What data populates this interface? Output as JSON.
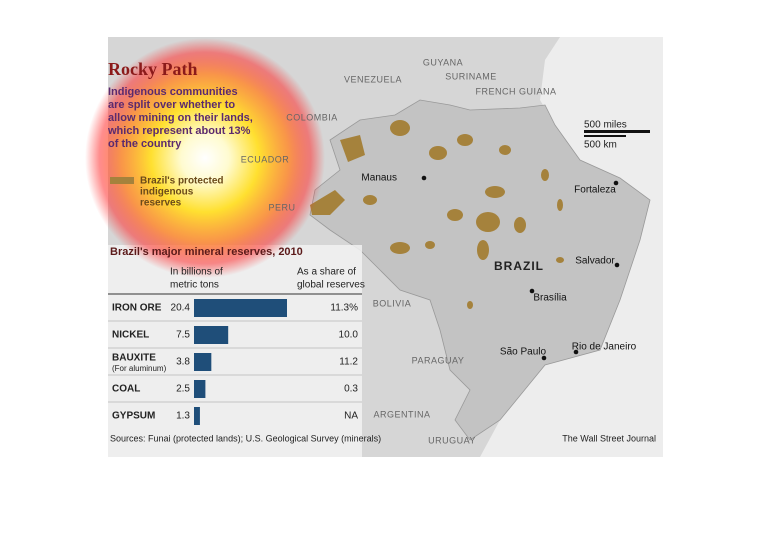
{
  "title": "Rocky Path",
  "subtitle_lines": [
    "Indigenous communities",
    "are split over whether to",
    "allow mining on their lands,",
    "which represent about 13%",
    "of the country"
  ],
  "legend_lines": [
    "Brazil's protected",
    "indigenous",
    "reserves"
  ],
  "countries": [
    "VENEZUELA",
    "GUYANA",
    "SURINAME",
    "FRENCH GUIANA",
    "COLOMBIA",
    "ECUADOR",
    "PERU",
    "BOLIVIA",
    "PARAGUAY",
    "ARGENTINA",
    "URUGUAY"
  ],
  "country_name": "BRAZIL",
  "cities": [
    "Manaus",
    "Fortaleza",
    "Salvador",
    "Brasília",
    "São Paulo",
    "Rio de Janeiro"
  ],
  "scale": [
    "500 miles",
    "500 km"
  ],
  "chart_data": {
    "type": "bar",
    "title": "Brazil's major mineral reserves, 2010",
    "value_header": [
      "In billions of",
      "metric tons"
    ],
    "share_header": [
      "As a share of",
      "global reserves"
    ],
    "categories": [
      "IRON ORE",
      "NICKEL",
      "BAUXITE",
      "COAL",
      "GYPSUM"
    ],
    "category_notes": [
      null,
      null,
      "(For aluminum)",
      null,
      null
    ],
    "values": [
      20.4,
      7.5,
      3.8,
      2.5,
      1.3
    ],
    "shares": [
      "11.3%",
      "10.0",
      "11.2",
      "0.3",
      "NA"
    ],
    "color": "#1f4e79"
  },
  "source": "Sources: Funai (protected lands); U.S. Geological Survey (minerals)",
  "credit": "The Wall Street Journal"
}
